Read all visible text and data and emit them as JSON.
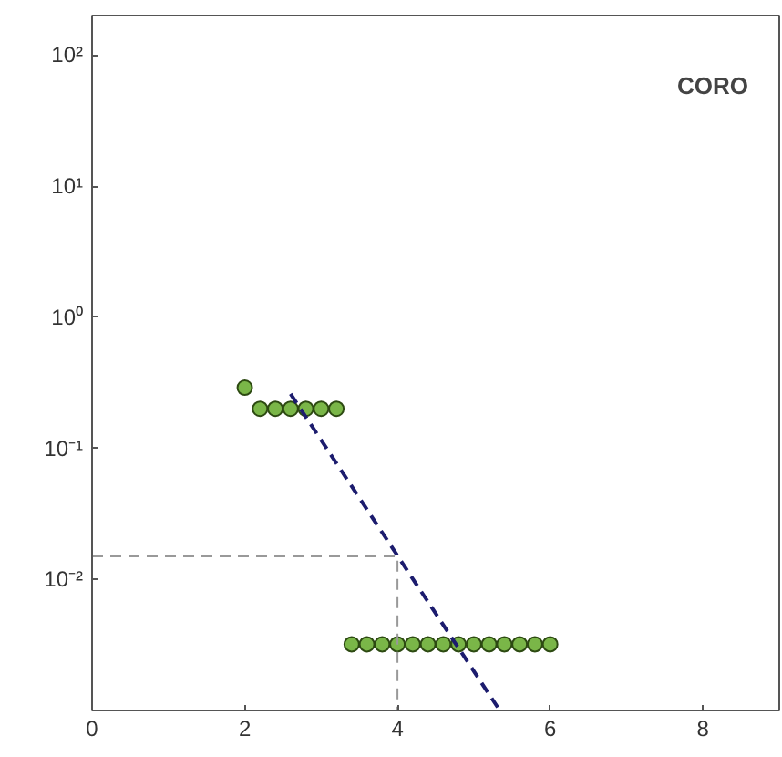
{
  "chart_data": {
    "type": "scatter",
    "log": "y",
    "grid": false,
    "marker": "circle",
    "xlim": [
      0,
      9
    ],
    "ylim": [
      0.001,
      200
    ],
    "xticks": [
      0,
      2,
      4,
      6,
      8
    ],
    "yticks": [
      {
        "value": 100,
        "label": "10²"
      },
      {
        "value": 10,
        "label": "10¹"
      },
      {
        "value": 1,
        "label": "10⁰"
      },
      {
        "value": 0.1,
        "label": "10⁻¹"
      },
      {
        "value": 0.01,
        "label": "10⁻²"
      }
    ],
    "annotations": [
      "CORO"
    ],
    "series": [
      {
        "color": "#7ab648",
        "x": [
          2.0,
          2.2,
          2.4,
          2.6,
          2.8,
          3.0,
          3.2,
          3.4,
          3.6,
          3.8,
          4.0,
          4.2,
          4.4,
          4.6,
          4.8,
          5.0,
          5.2,
          5.4,
          5.6,
          5.8,
          6.0
        ],
        "values": [
          0.29,
          0.2,
          0.2,
          0.2,
          0.2,
          0.2,
          0.2,
          0.0032,
          0.0032,
          0.0032,
          0.0032,
          0.0032,
          0.0032,
          0.0032,
          0.0032,
          0.0032,
          0.0032,
          0.0032,
          0.0032,
          0.0032,
          0.0032
        ]
      },
      {
        "type": "line",
        "color": "#1c1c6e",
        "line_style": "dashed",
        "marker": "none",
        "x": [
          2.6,
          5.34
        ],
        "values": [
          0.26,
          0.001
        ]
      },
      {
        "type": "line",
        "color": "#999999",
        "line_style": "dashed",
        "marker": "none",
        "x": [
          0,
          4,
          4
        ],
        "values": [
          0.015,
          0.015,
          0.001
        ]
      }
    ]
  }
}
